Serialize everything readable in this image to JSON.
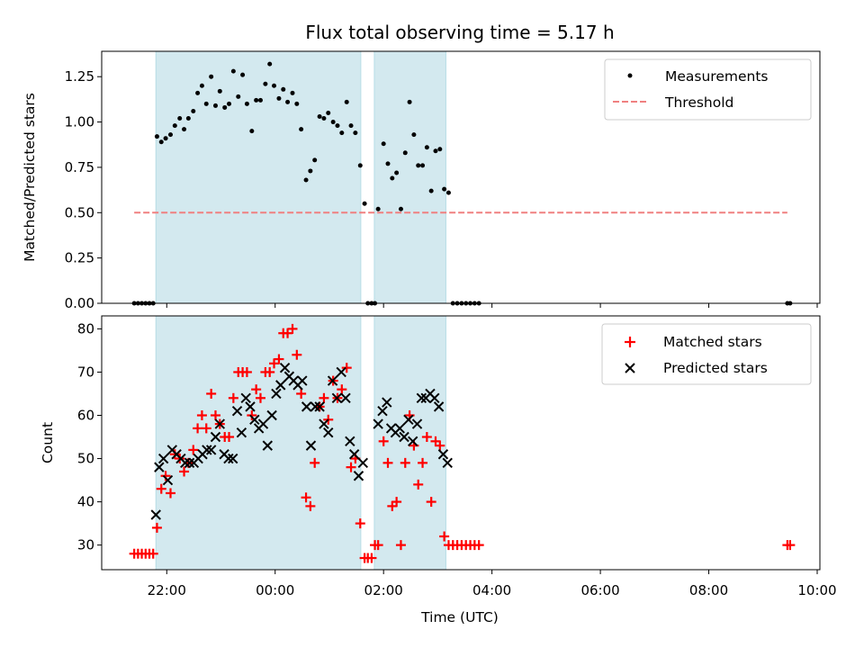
{
  "chart_data": [
    {
      "type": "scatter",
      "title": "Flux total observing time = 5.17 h",
      "xlabel": "",
      "ylabel": "Matched/Predicted stars",
      "xlim_hours": [
        -3.2,
        10.05
      ],
      "ylim": [
        0,
        1.39
      ],
      "yticks": [
        "0.00",
        "0.25",
        "0.50",
        "0.75",
        "1.00",
        "1.25"
      ],
      "legend_position": "top-right",
      "shaded_intervals_hours": [
        [
          -2.2,
          1.58
        ],
        [
          1.83,
          3.15
        ]
      ],
      "shade_color": "#d3e9ef",
      "series": [
        {
          "name": "Measurements",
          "marker": "dot",
          "color": "#000000",
          "points": [
            [
              -2.6,
              0
            ],
            [
              -2.53,
              0
            ],
            [
              -2.46,
              0
            ],
            [
              -2.39,
              0
            ],
            [
              -2.32,
              0
            ],
            [
              -2.25,
              0
            ],
            [
              -2.18,
              0.92
            ],
            [
              -2.1,
              0.89
            ],
            [
              -2.02,
              0.91
            ],
            [
              -1.93,
              0.93
            ],
            [
              -1.85,
              0.98
            ],
            [
              -1.76,
              1.02
            ],
            [
              -1.68,
              0.96
            ],
            [
              -1.6,
              1.02
            ],
            [
              -1.51,
              1.06
            ],
            [
              -1.43,
              1.16
            ],
            [
              -1.35,
              1.2
            ],
            [
              -1.27,
              1.1
            ],
            [
              -1.18,
              1.25
            ],
            [
              -1.1,
              1.09
            ],
            [
              -1.02,
              1.17
            ],
            [
              -0.93,
              1.08
            ],
            [
              -0.85,
              1.1
            ],
            [
              -0.77,
              1.28
            ],
            [
              -0.68,
              1.14
            ],
            [
              -0.6,
              1.26
            ],
            [
              -0.52,
              1.1
            ],
            [
              -0.43,
              0.95
            ],
            [
              -0.35,
              1.12
            ],
            [
              -0.27,
              1.12
            ],
            [
              -0.18,
              1.21
            ],
            [
              -0.1,
              1.32
            ],
            [
              -0.02,
              1.2
            ],
            [
              0.07,
              1.13
            ],
            [
              0.15,
              1.18
            ],
            [
              0.23,
              1.11
            ],
            [
              0.32,
              1.16
            ],
            [
              0.4,
              1.1
            ],
            [
              0.48,
              0.96
            ],
            [
              0.57,
              0.68
            ],
            [
              0.65,
              0.73
            ],
            [
              0.73,
              0.79
            ],
            [
              0.82,
              1.03
            ],
            [
              0.9,
              1.02
            ],
            [
              0.98,
              1.05
            ],
            [
              1.07,
              1.0
            ],
            [
              1.15,
              0.98
            ],
            [
              1.23,
              0.94
            ],
            [
              1.32,
              1.11
            ],
            [
              1.4,
              0.98
            ],
            [
              1.48,
              0.94
            ],
            [
              1.57,
              0.76
            ],
            [
              1.65,
              0.55
            ],
            [
              1.71,
              0
            ],
            [
              1.78,
              0
            ],
            [
              1.84,
              0
            ],
            [
              1.9,
              0.52
            ],
            [
              2.0,
              0.88
            ],
            [
              2.08,
              0.77
            ],
            [
              2.16,
              0.69
            ],
            [
              2.24,
              0.72
            ],
            [
              2.32,
              0.52
            ],
            [
              2.4,
              0.83
            ],
            [
              2.48,
              1.11
            ],
            [
              2.56,
              0.93
            ],
            [
              2.64,
              0.76
            ],
            [
              2.72,
              0.76
            ],
            [
              2.8,
              0.86
            ],
            [
              2.88,
              0.62
            ],
            [
              2.96,
              0.84
            ],
            [
              3.04,
              0.85
            ],
            [
              3.12,
              0.63
            ],
            [
              3.2,
              0.61
            ],
            [
              3.28,
              0
            ],
            [
              3.36,
              0
            ],
            [
              3.44,
              0
            ],
            [
              3.52,
              0
            ],
            [
              3.6,
              0
            ],
            [
              3.68,
              0
            ],
            [
              3.76,
              0
            ],
            [
              9.45,
              0
            ],
            [
              9.5,
              0
            ]
          ]
        },
        {
          "name": "Threshold",
          "marker": "dashed-line",
          "color": "#f08080",
          "x": [
            -2.6,
            9.45
          ],
          "y": [
            0.5,
            0.5
          ]
        }
      ]
    },
    {
      "type": "scatter",
      "title": "",
      "xlabel": "Time (UTC)",
      "ylabel": "Count",
      "xlim_hours": [
        -3.2,
        10.05
      ],
      "ylim": [
        24.3,
        83
      ],
      "yticks": [
        "30",
        "40",
        "50",
        "60",
        "70",
        "80"
      ],
      "xticks": [
        "22:00",
        "00:00",
        "02:00",
        "04:00",
        "06:00",
        "08:00",
        "10:00"
      ],
      "xtick_hours": [
        -2,
        0,
        2,
        4,
        6,
        8,
        10
      ],
      "legend_position": "top-right",
      "shaded_intervals_hours": [
        [
          -2.2,
          1.58
        ],
        [
          1.83,
          3.15
        ]
      ],
      "shade_color": "#d3e9ef",
      "series": [
        {
          "name": "Matched stars",
          "marker": "plus",
          "color": "#ff0000",
          "points": [
            [
              -2.6,
              28
            ],
            [
              -2.53,
              28
            ],
            [
              -2.46,
              28
            ],
            [
              -2.39,
              28
            ],
            [
              -2.32,
              28
            ],
            [
              -2.25,
              28
            ],
            [
              -2.18,
              34
            ],
            [
              -2.1,
              43
            ],
            [
              -2.02,
              46
            ],
            [
              -1.93,
              42
            ],
            [
              -1.85,
              51
            ],
            [
              -1.76,
              50
            ],
            [
              -1.68,
              47
            ],
            [
              -1.6,
              49
            ],
            [
              -1.51,
              52
            ],
            [
              -1.43,
              57
            ],
            [
              -1.35,
              60
            ],
            [
              -1.27,
              57
            ],
            [
              -1.18,
              65
            ],
            [
              -1.1,
              60
            ],
            [
              -1.02,
              58
            ],
            [
              -0.93,
              55
            ],
            [
              -0.85,
              55
            ],
            [
              -0.77,
              64
            ],
            [
              -0.68,
              70
            ],
            [
              -0.6,
              70
            ],
            [
              -0.52,
              70
            ],
            [
              -0.43,
              60
            ],
            [
              -0.35,
              66
            ],
            [
              -0.27,
              64
            ],
            [
              -0.18,
              70
            ],
            [
              -0.1,
              70
            ],
            [
              -0.02,
              72
            ],
            [
              0.07,
              73
            ],
            [
              0.15,
              79
            ],
            [
              0.23,
              79
            ],
            [
              0.32,
              80
            ],
            [
              0.4,
              74
            ],
            [
              0.48,
              65
            ],
            [
              0.57,
              41
            ],
            [
              0.65,
              39
            ],
            [
              0.73,
              49
            ],
            [
              0.82,
              62
            ],
            [
              0.9,
              64
            ],
            [
              0.98,
              59
            ],
            [
              1.07,
              68
            ],
            [
              1.15,
              64
            ],
            [
              1.23,
              66
            ],
            [
              1.32,
              71
            ],
            [
              1.4,
              48
            ],
            [
              1.48,
              50
            ],
            [
              1.57,
              35
            ],
            [
              1.65,
              27
            ],
            [
              1.71,
              27
            ],
            [
              1.78,
              27
            ],
            [
              1.84,
              30
            ],
            [
              1.9,
              30
            ],
            [
              2.0,
              54
            ],
            [
              2.08,
              49
            ],
            [
              2.16,
              39
            ],
            [
              2.24,
              40
            ],
            [
              2.32,
              30
            ],
            [
              2.4,
              49
            ],
            [
              2.48,
              60
            ],
            [
              2.56,
              53
            ],
            [
              2.64,
              44
            ],
            [
              2.72,
              49
            ],
            [
              2.8,
              55
            ],
            [
              2.88,
              40
            ],
            [
              2.96,
              54
            ],
            [
              3.04,
              53
            ],
            [
              3.12,
              32
            ],
            [
              3.2,
              30
            ],
            [
              3.28,
              30
            ],
            [
              3.36,
              30
            ],
            [
              3.44,
              30
            ],
            [
              3.52,
              30
            ],
            [
              3.6,
              30
            ],
            [
              3.68,
              30
            ],
            [
              3.76,
              30
            ],
            [
              9.45,
              30
            ],
            [
              9.5,
              30
            ]
          ]
        },
        {
          "name": "Predicted stars",
          "marker": "x",
          "color": "#000000",
          "points": [
            [
              -2.2,
              37
            ],
            [
              -2.14,
              48
            ],
            [
              -2.06,
              50
            ],
            [
              -1.98,
              45
            ],
            [
              -1.9,
              52
            ],
            [
              -1.82,
              51
            ],
            [
              -1.74,
              50
            ],
            [
              -1.66,
              49
            ],
            [
              -1.58,
              49
            ],
            [
              -1.5,
              49
            ],
            [
              -1.42,
              50
            ],
            [
              -1.34,
              51
            ],
            [
              -1.26,
              52
            ],
            [
              -1.18,
              52
            ],
            [
              -1.1,
              55
            ],
            [
              -1.02,
              58
            ],
            [
              -0.94,
              51
            ],
            [
              -0.86,
              50
            ],
            [
              -0.78,
              50
            ],
            [
              -0.7,
              61
            ],
            [
              -0.62,
              56
            ],
            [
              -0.54,
              64
            ],
            [
              -0.46,
              62
            ],
            [
              -0.38,
              59
            ],
            [
              -0.3,
              57
            ],
            [
              -0.22,
              58
            ],
            [
              -0.14,
              53
            ],
            [
              -0.06,
              60
            ],
            [
              0.02,
              65
            ],
            [
              0.1,
              67
            ],
            [
              0.18,
              71
            ],
            [
              0.26,
              69
            ],
            [
              0.34,
              68
            ],
            [
              0.42,
              67
            ],
            [
              0.5,
              68
            ],
            [
              0.58,
              62
            ],
            [
              0.66,
              53
            ],
            [
              0.74,
              62
            ],
            [
              0.82,
              62
            ],
            [
              0.9,
              58
            ],
            [
              0.98,
              56
            ],
            [
              1.06,
              68
            ],
            [
              1.14,
              64
            ],
            [
              1.22,
              70
            ],
            [
              1.3,
              64
            ],
            [
              1.38,
              54
            ],
            [
              1.46,
              51
            ],
            [
              1.54,
              46
            ],
            [
              1.62,
              49
            ],
            [
              1.9,
              58
            ],
            [
              1.98,
              61
            ],
            [
              2.06,
              63
            ],
            [
              2.14,
              57
            ],
            [
              2.22,
              56
            ],
            [
              2.3,
              57
            ],
            [
              2.38,
              55
            ],
            [
              2.46,
              59
            ],
            [
              2.54,
              54
            ],
            [
              2.62,
              58
            ],
            [
              2.7,
              64
            ],
            [
              2.78,
              64
            ],
            [
              2.86,
              65
            ],
            [
              2.94,
              64
            ],
            [
              3.02,
              62
            ],
            [
              3.1,
              51
            ],
            [
              3.18,
              49
            ]
          ]
        }
      ]
    }
  ]
}
